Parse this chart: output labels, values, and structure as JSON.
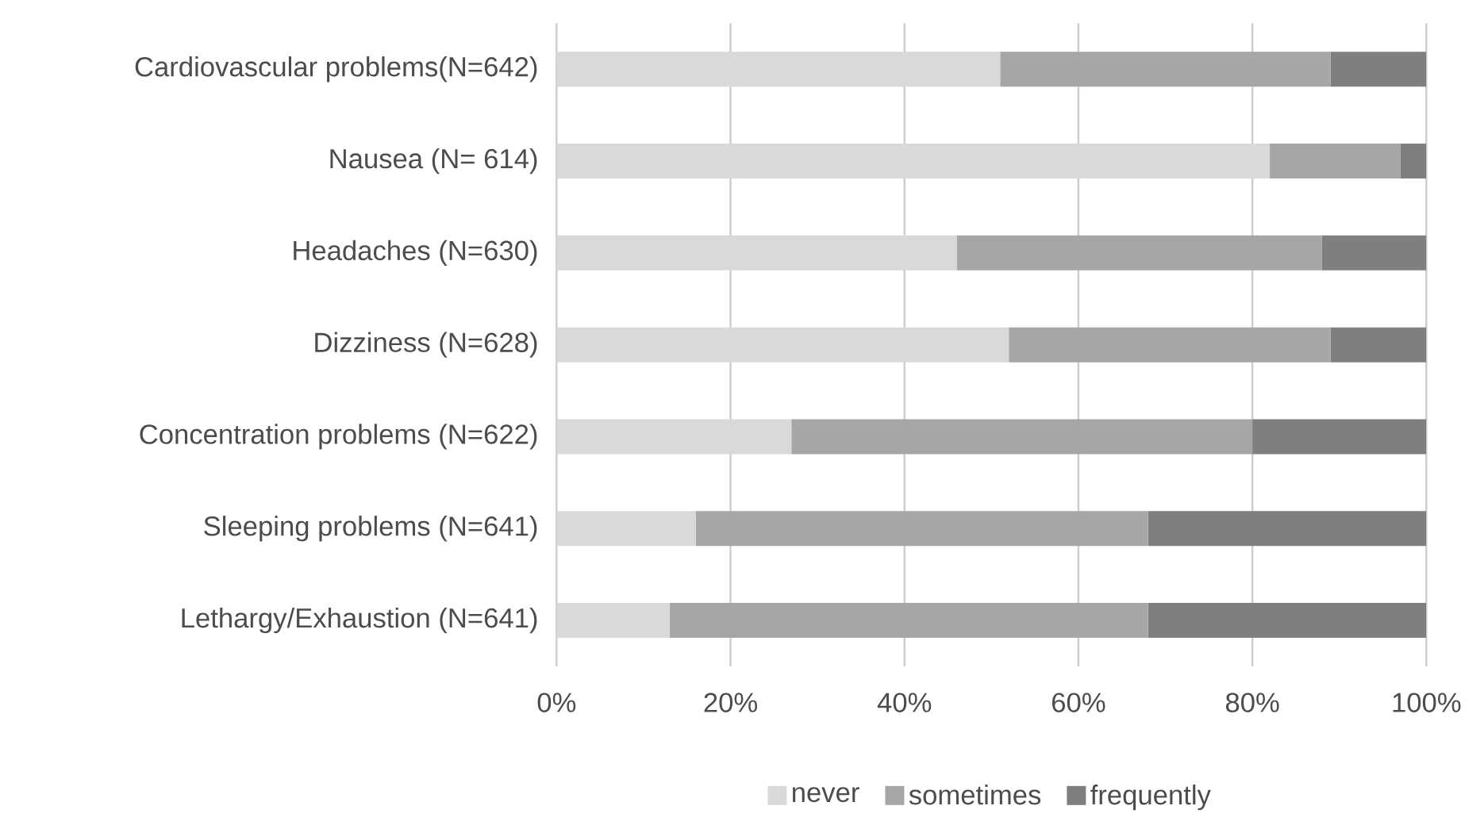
{
  "chart_data": {
    "type": "bar",
    "orientation": "horizontal",
    "stacked": true,
    "categories": [
      "Cardiovascular problems(N=642)",
      "Nausea (N= 614)",
      "Headaches (N=630)",
      "Dizziness (N=628)",
      "Concentration problems (N=622)",
      "Sleeping problems (N=641)",
      "Lethargy/Exhaustion (N=641)"
    ],
    "series": [
      {
        "name": "never",
        "color": "#d9d9d9",
        "values": [
          51,
          82,
          46,
          52,
          27,
          16,
          13
        ]
      },
      {
        "name": "sometimes",
        "color": "#a6a6a6",
        "values": [
          38,
          15,
          42,
          37,
          53,
          52,
          55
        ]
      },
      {
        "name": "frequently",
        "color": "#7f7f7f",
        "values": [
          11,
          3,
          12,
          11,
          20,
          32,
          32
        ]
      }
    ],
    "xlim": [
      0,
      100
    ],
    "xticks": [
      {
        "value": 0,
        "label": "0%"
      },
      {
        "value": 20,
        "label": "20%"
      },
      {
        "value": 40,
        "label": "40%"
      },
      {
        "value": 60,
        "label": "60%"
      },
      {
        "value": 80,
        "label": "80%"
      },
      {
        "value": 100,
        "label": "100%"
      }
    ],
    "grid": "x",
    "legend": "bottom"
  }
}
